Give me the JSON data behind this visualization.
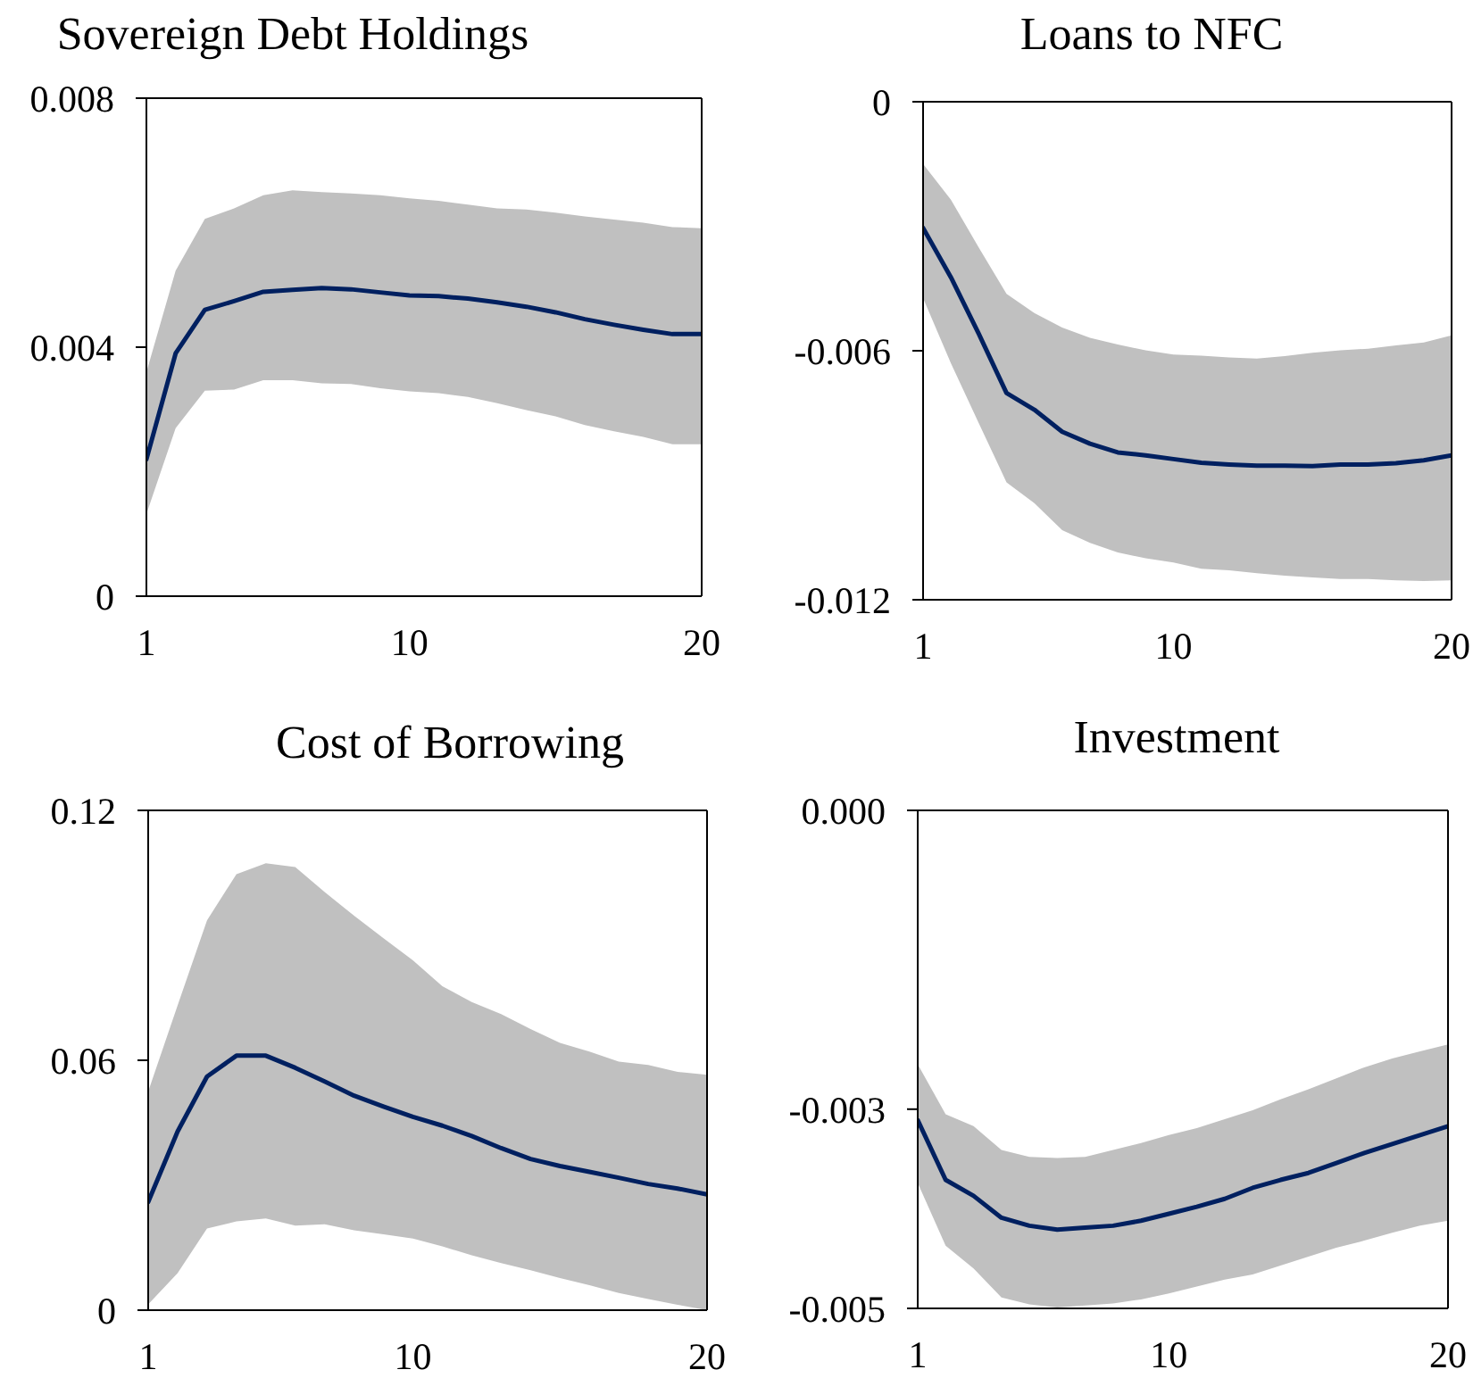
{
  "chart_data": [
    {
      "type": "line",
      "title": "Sovereign Debt Holdings",
      "x": [
        1,
        2,
        3,
        4,
        5,
        6,
        7,
        8,
        9,
        10,
        11,
        12,
        13,
        14,
        15,
        16,
        17,
        18,
        19,
        20
      ],
      "xlim": [
        1,
        20
      ],
      "xticks": [
        1,
        10,
        20
      ],
      "ylim": [
        0,
        0.008
      ],
      "yticks": [
        0,
        0.004,
        0.008
      ],
      "series": [
        {
          "color": "#002060",
          "values": [
            0.0022,
            0.0039,
            0.0046,
            0.00474,
            0.00489,
            0.00492,
            0.00495,
            0.00493,
            0.00488,
            0.00483,
            0.00482,
            0.00478,
            0.00472,
            0.00465,
            0.00456,
            0.00445,
            0.00436,
            0.00428,
            0.00421,
            0.00421
          ],
          "upper": [
            0.0036,
            0.00523,
            0.00606,
            0.00623,
            0.00644,
            0.00652,
            0.00649,
            0.00647,
            0.00644,
            0.00639,
            0.00635,
            0.00629,
            0.00623,
            0.00621,
            0.00616,
            0.0061,
            0.00605,
            0.006,
            0.00593,
            0.00591
          ],
          "lower": [
            0.00132,
            0.0027,
            0.0033,
            0.00332,
            0.00347,
            0.00347,
            0.00342,
            0.00341,
            0.00334,
            0.00329,
            0.00326,
            0.0032,
            0.0031,
            0.00299,
            0.00289,
            0.00275,
            0.00265,
            0.00256,
            0.00244,
            0.00244
          ]
        }
      ]
    },
    {
      "type": "line",
      "title": "Loans to NFC",
      "x": [
        1,
        2,
        3,
        4,
        5,
        6,
        7,
        8,
        9,
        10,
        11,
        12,
        13,
        14,
        15,
        16,
        17,
        18,
        19,
        20
      ],
      "xlim": [
        1,
        20
      ],
      "xticks": [
        1,
        10,
        20
      ],
      "ylim": [
        -0.012,
        0
      ],
      "yticks": [
        -0.012,
        -0.006,
        0
      ],
      "series": [
        {
          "color": "#002060",
          "values": [
            -0.00304,
            -0.00423,
            -0.00559,
            -0.00702,
            -0.00742,
            -0.00795,
            -0.00824,
            -0.00845,
            -0.00852,
            -0.00861,
            -0.0087,
            -0.00874,
            -0.00877,
            -0.00877,
            -0.00878,
            -0.00874,
            -0.00874,
            -0.00871,
            -0.00864,
            -0.00852
          ],
          "upper": [
            -0.0015,
            -0.00236,
            -0.00351,
            -0.00463,
            -0.00509,
            -0.00544,
            -0.00569,
            -0.00585,
            -0.00599,
            -0.00609,
            -0.00612,
            -0.00616,
            -0.00619,
            -0.00613,
            -0.00605,
            -0.00599,
            -0.00595,
            -0.00587,
            -0.0058,
            -0.00563
          ],
          "lower": [
            -0.00473,
            -0.0063,
            -0.00774,
            -0.00917,
            -0.00967,
            -0.01032,
            -0.01063,
            -0.01086,
            -0.011,
            -0.0111,
            -0.01125,
            -0.01129,
            -0.01136,
            -0.01142,
            -0.01146,
            -0.0115,
            -0.0115,
            -0.01153,
            -0.01155,
            -0.01153
          ]
        }
      ]
    },
    {
      "type": "line",
      "title": "Cost of Borrowing",
      "x": [
        1,
        2,
        3,
        4,
        5,
        6,
        7,
        8,
        9,
        10,
        11,
        12,
        13,
        14,
        15,
        16,
        17,
        18,
        19,
        20
      ],
      "xlim": [
        1,
        20
      ],
      "xticks": [
        1,
        10,
        20
      ],
      "ylim": [
        0,
        0.12
      ],
      "yticks": [
        0,
        0.06,
        0.12
      ],
      "series": [
        {
          "color": "#002060",
          "values": [
            0.026,
            0.0429,
            0.0561,
            0.0611,
            0.0611,
            0.0582,
            0.0549,
            0.0515,
            0.0489,
            0.0464,
            0.0443,
            0.0418,
            0.0389,
            0.0363,
            0.0346,
            0.0332,
            0.0318,
            0.0303,
            0.0292,
            0.0278
          ],
          "upper": [
            0.0525,
            0.0732,
            0.0936,
            0.1047,
            0.1073,
            0.1064,
            0.1004,
            0.0947,
            0.0893,
            0.084,
            0.0778,
            0.074,
            0.0711,
            0.0675,
            0.0642,
            0.0621,
            0.0597,
            0.0589,
            0.0572,
            0.0565
          ],
          "lower": [
            0.0014,
            0.0089,
            0.0196,
            0.0213,
            0.022,
            0.0203,
            0.0206,
            0.0192,
            0.0182,
            0.0172,
            0.0153,
            0.0132,
            0.0113,
            0.0096,
            0.0077,
            0.006,
            0.0041,
            0.0027,
            0.0013,
            0
          ]
        }
      ]
    },
    {
      "type": "line",
      "title": "Investment",
      "x": [
        1,
        2,
        3,
        4,
        5,
        6,
        7,
        8,
        9,
        10,
        11,
        12,
        13,
        14,
        15,
        16,
        17,
        18,
        19,
        20
      ],
      "xlim": [
        1,
        20
      ],
      "xticks": [
        1,
        10,
        20
      ],
      "ylim": [
        -0.005,
        0
      ],
      "yticks": [
        -0.005,
        -0.003,
        {
          "value": 0,
          "label": "0.000"
        }
      ],
      "series": [
        {
          "color": "#002060",
          "values": [
            -0.00311,
            -0.00371,
            -0.00387,
            -0.00409,
            -0.00417,
            -0.00421,
            -0.00419,
            -0.00417,
            -0.00412,
            -0.00405,
            -0.00398,
            -0.0039,
            -0.00379,
            -0.00371,
            -0.00364,
            -0.00354,
            -0.00344,
            -0.00335,
            -0.00326,
            -0.00317
          ],
          "upper": [
            -0.00255,
            -0.00305,
            -0.00317,
            -0.00341,
            -0.00348,
            -0.00349,
            -0.00348,
            -0.00341,
            -0.00334,
            -0.00326,
            -0.00319,
            -0.0031,
            -0.00301,
            -0.0029,
            -0.0028,
            -0.00269,
            -0.00258,
            -0.00249,
            -0.00242,
            -0.00235
          ],
          "lower": [
            -0.00374,
            -0.00437,
            -0.0046,
            -0.00489,
            -0.00496,
            -0.00499,
            -0.00497,
            -0.00495,
            -0.00491,
            -0.00485,
            -0.00478,
            -0.00471,
            -0.00466,
            -0.00457,
            -0.00448,
            -0.00439,
            -0.00432,
            -0.00424,
            -0.00417,
            -0.00412
          ]
        }
      ]
    }
  ]
}
